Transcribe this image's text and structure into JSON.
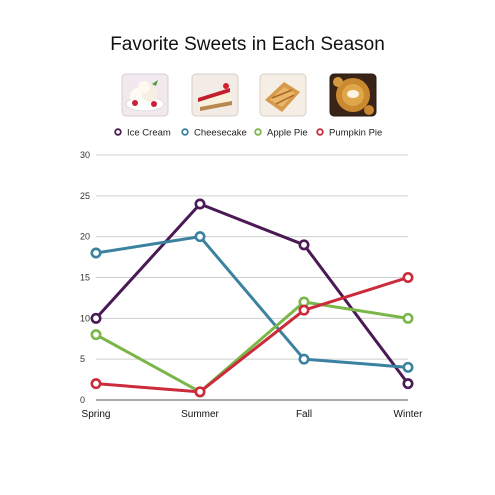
{
  "chart_data": {
    "type": "line",
    "title": "Favorite Sweets in Each Season",
    "xlabel": "",
    "ylabel": "",
    "categories": [
      "Spring",
      "Summer",
      "Fall",
      "Winter"
    ],
    "ylim": [
      0,
      30
    ],
    "yticks": [
      0,
      5,
      10,
      15,
      20,
      25,
      30
    ],
    "grid": true,
    "legend_position": "top",
    "series": [
      {
        "name": "Ice Cream",
        "color": "#4b1a55",
        "values": [
          10,
          24,
          19,
          2
        ],
        "icon": "ice-cream-photo"
      },
      {
        "name": "Cheesecake",
        "color": "#3b82a0",
        "values": [
          18,
          20,
          5,
          4
        ],
        "icon": "cheesecake-photo"
      },
      {
        "name": "Apple Pie",
        "color": "#7ab648",
        "values": [
          8,
          1,
          12,
          10
        ],
        "icon": "apple-pie-photo"
      },
      {
        "name": "Pumpkin Pie",
        "color": "#cc2b3b",
        "values": [
          2,
          1,
          11,
          15
        ],
        "icon": "pumpkin-pie-photo"
      }
    ]
  }
}
